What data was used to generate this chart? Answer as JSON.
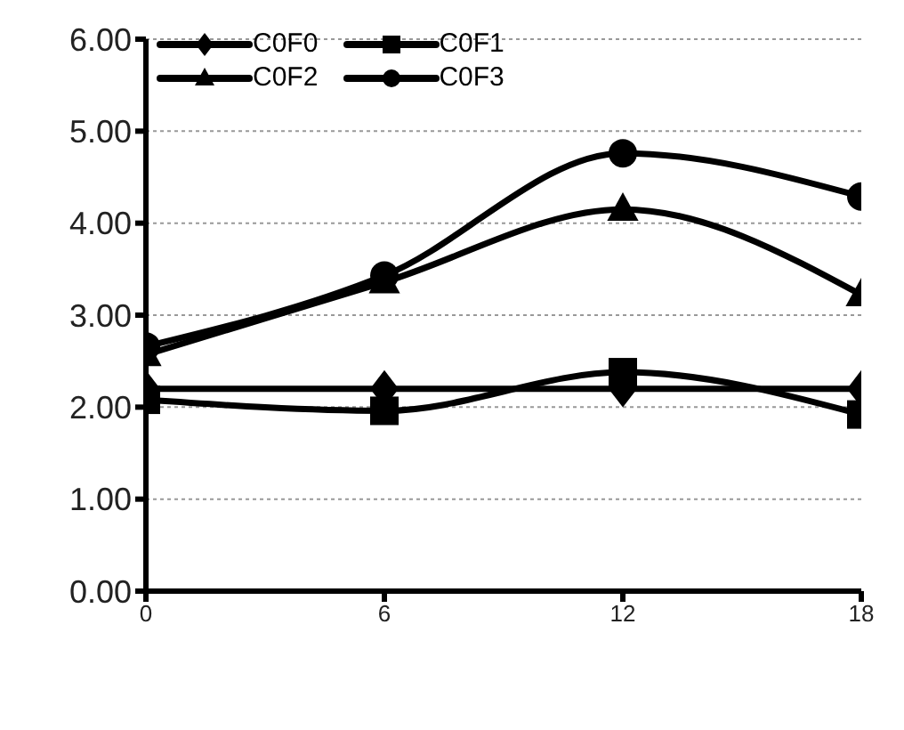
{
  "chart_data": {
    "type": "line",
    "x": [
      0,
      6,
      12,
      18
    ],
    "xlim": [
      0,
      18
    ],
    "xticks": [
      0,
      6,
      12,
      18
    ],
    "ylim": [
      0,
      6
    ],
    "yticks": [
      {
        "value": 0,
        "label": "0.00"
      },
      {
        "value": 1,
        "label": "1.00"
      },
      {
        "value": 2,
        "label": "2.00"
      },
      {
        "value": 3,
        "label": "3.00"
      },
      {
        "value": 4,
        "label": "4.00"
      },
      {
        "value": 5,
        "label": "5.00"
      },
      {
        "value": 6,
        "label": "6.00"
      }
    ],
    "grid": "y",
    "legend": "top left",
    "line_style": "solid",
    "series": [
      {
        "name": "C0F0",
        "color": "#000000",
        "marker": "diamond",
        "values": [
          2.2,
          2.2,
          2.2,
          2.2
        ]
      },
      {
        "name": "C0F1",
        "color": "#000000",
        "marker": "square",
        "values": [
          2.08,
          1.96,
          2.38,
          1.92
        ]
      },
      {
        "name": "C0F2",
        "color": "#000000",
        "marker": "triangle",
        "values": [
          2.57,
          3.36,
          4.15,
          3.22
        ]
      },
      {
        "name": "C0F3",
        "color": "#000000",
        "marker": "circle",
        "values": [
          2.66,
          3.43,
          4.76,
          4.29
        ]
      }
    ]
  }
}
